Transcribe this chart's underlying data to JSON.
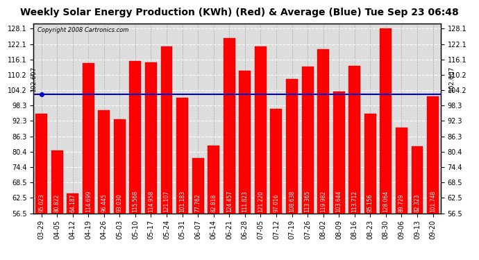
{
  "title": "Weekly Solar Energy Production (KWh) (Red) & Average (Blue) Tue Sep 23 06:48",
  "copyright": "Copyright 2008 Cartronics.com",
  "categories": [
    "03-29",
    "04-05",
    "04-12",
    "04-19",
    "04-26",
    "05-03",
    "05-10",
    "05-17",
    "05-24",
    "05-31",
    "06-07",
    "06-14",
    "06-21",
    "06-28",
    "07-05",
    "07-12",
    "07-19",
    "07-26",
    "08-02",
    "08-09",
    "08-16",
    "08-23",
    "08-30",
    "09-06",
    "09-13",
    "09-20"
  ],
  "values": [
    95.023,
    80.822,
    64.187,
    114.699,
    96.445,
    93.03,
    115.568,
    114.958,
    121.107,
    101.183,
    77.762,
    82.818,
    124.457,
    111.823,
    121.22,
    97.016,
    108.638,
    113.365,
    119.982,
    103.644,
    113.712,
    95.156,
    128.064,
    89.729,
    82.323,
    101.748
  ],
  "average": 102.607,
  "bar_color": "#ff0000",
  "avg_line_color": "#0000cc",
  "background_color": "#ffffff",
  "plot_bg_color": "#dddddd",
  "grid_color": "#aaaaaa",
  "ylim_min": 56.5,
  "ylim_max": 130.1,
  "yticks": [
    56.5,
    62.5,
    68.5,
    74.4,
    80.4,
    86.3,
    92.3,
    98.3,
    104.2,
    110.2,
    116.1,
    122.1,
    128.1
  ],
  "ytick_labels": [
    "56.5",
    "62.5",
    "68.5",
    "74.4",
    "80.4",
    "86.3",
    "92.3",
    "98.3",
    "104.2",
    "110.2",
    "116.1",
    "122.1",
    "128.1"
  ],
  "left_avg_label": "102.607",
  "right_avg_label": "102.607",
  "title_fontsize": 10,
  "copyright_fontsize": 6,
  "tick_fontsize": 7,
  "val_fontsize": 5.5,
  "bar_width": 0.75
}
